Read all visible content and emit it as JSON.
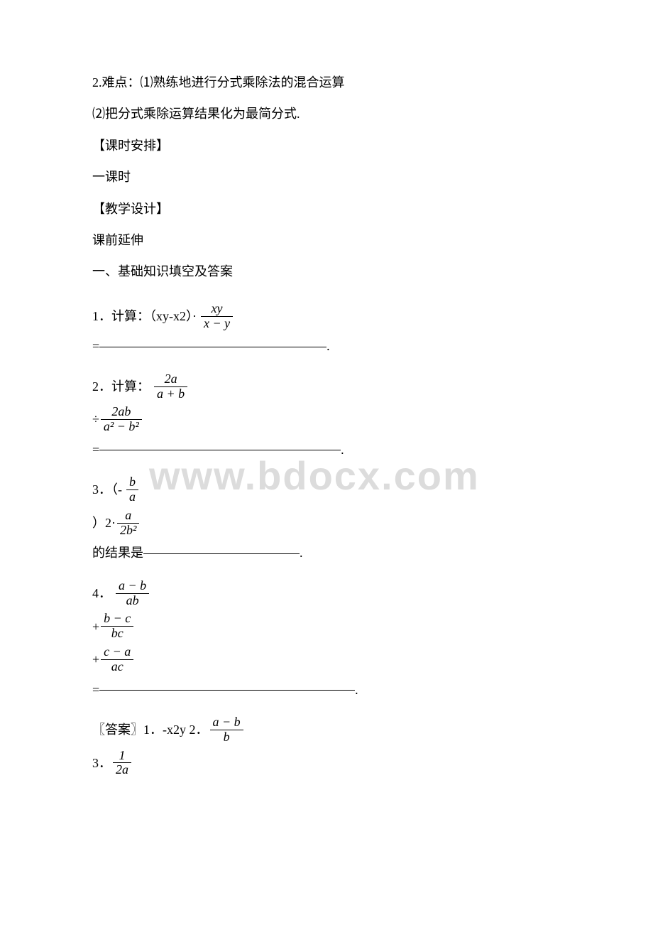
{
  "difficulty": {
    "line1": "2.难点：⑴熟练地进行分式乘除法的混合运算",
    "line2": "⑵把分式乘除运算结果化为最简分式."
  },
  "sections": {
    "schedule_title": "【课时安排】",
    "schedule_content": "一课时",
    "design_title": "【教学设计】",
    "pre_class": "课前延伸",
    "fill_blanks_title": "一、基础知识填空及答案"
  },
  "q1": {
    "prefix": "1．计算：（xy-x2）·",
    "frac_num": "xy",
    "frac_den": "x − y",
    "equals": "=",
    "blank_width": 320,
    "period": "."
  },
  "q2": {
    "prefix": "2．计算：",
    "frac1_num": "2a",
    "frac1_den": "a + b",
    "div": "÷",
    "frac2_num": "2ab",
    "frac2_den": "a² − b²",
    "equals": "=",
    "blank_width": 340,
    "period": "."
  },
  "q3": {
    "prefix": "3．（-",
    "frac1_num": "b",
    "frac1_den": "a",
    "mid": "）2·",
    "frac2_num": "a",
    "frac2_den": "2b²",
    "result_label": "的结果是",
    "blank_width": 220,
    "period": "."
  },
  "q4": {
    "prefix": "4．",
    "frac1_num": "a − b",
    "frac1_den": "ab",
    "plus1": "+",
    "frac2_num": "b − c",
    "frac2_den": "bc",
    "plus2": "+",
    "frac3_num": "c − a",
    "frac3_den": "ac",
    "equals": "=",
    "blank_width": 360,
    "period": "."
  },
  "answers": {
    "label": "〖答案〗",
    "a1_prefix": "1．-x2y 2．",
    "a2_num": "a − b",
    "a2_den": "b",
    "a3_prefix": " 3．",
    "a3_num": "1",
    "a3_den": "2a"
  },
  "watermark": "www.bdocx.com"
}
